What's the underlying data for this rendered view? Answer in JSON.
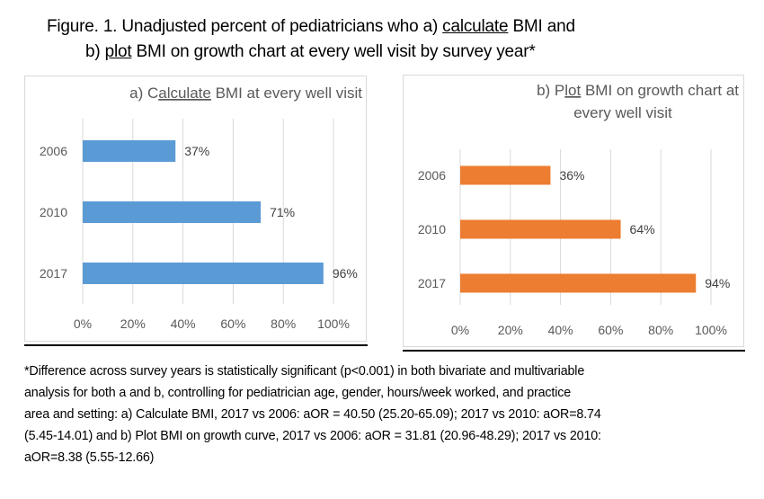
{
  "figure": {
    "title_line1_pre": "Figure. 1. Unadjusted percent of pediatricians who a) ",
    "title_line1_u": "calculate",
    "title_line1_post": " BMI and",
    "title_line2_pre": "b) ",
    "title_line2_u": "plot",
    "title_line2_post": " BMI on growth chart at every well visit by survey year*"
  },
  "chart_data": [
    {
      "type": "bar",
      "orientation": "horizontal",
      "title": "a) Calculate BMI at every well visit",
      "title_parts": {
        "pre": "a) C",
        "u": "alculate",
        "post": " BMI at every well visit"
      },
      "categories": [
        "2006",
        "2010",
        "2017"
      ],
      "values": [
        37,
        71,
        96
      ],
      "data_labels": [
        "37%",
        "71%",
        "96%"
      ],
      "xlabel": "",
      "ylabel": "",
      "xlim": [
        0,
        100
      ],
      "xticks": [
        "0%",
        "20%",
        "40%",
        "60%",
        "80%",
        "100%"
      ],
      "grid": true,
      "color": "#5B9BD5"
    },
    {
      "type": "bar",
      "orientation": "horizontal",
      "title": "b) Plot BMI on growth chart at every well visit",
      "title_parts": {
        "pre": "b) P",
        "u": "lot",
        "post": " BMI on growth chart at",
        "line2": "every well visit"
      },
      "categories": [
        "2006",
        "2010",
        "2017"
      ],
      "values": [
        36,
        64,
        94
      ],
      "data_labels": [
        "36%",
        "64%",
        "94%"
      ],
      "xlabel": "",
      "ylabel": "",
      "xlim": [
        0,
        100
      ],
      "xticks": [
        "0%",
        "20%",
        "40%",
        "60%",
        "80%",
        "100%"
      ],
      "grid": true,
      "color": "#ED7D31"
    }
  ],
  "footnote": {
    "lines": [
      "*Difference across survey years is statistically significant (p<0.001) in both bivariate and multivariable",
      "analysis for both a and b, controlling for pediatrician age, gender, hours/week worked, and practice",
      "area and setting: a) Calculate BMI, 2017 vs 2006: aOR = 40.50 (25.20-65.09); 2017 vs 2010: aOR=8.74",
      "(5.45-14.01) and b) Plot BMI on growth curve, 2017 vs 2006: aOR = 31.81 (20.96-48.29); 2017 vs 2010:",
      "aOR=8.38 (5.55-12.66)"
    ]
  }
}
